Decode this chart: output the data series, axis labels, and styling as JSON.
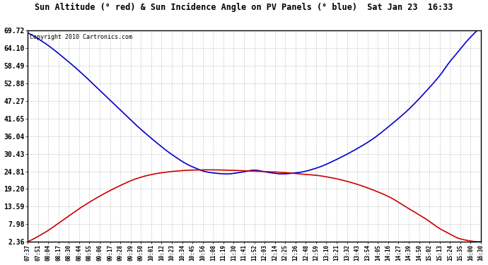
{
  "title": "Sun Altitude (° red) & Sun Incidence Angle on PV Panels (° blue)  Sat Jan 23  16:33",
  "copyright": "Copyright 2010 Cartronics.com",
  "yticks": [
    2.36,
    7.98,
    13.59,
    19.2,
    24.81,
    30.43,
    36.04,
    41.65,
    47.27,
    52.88,
    58.49,
    64.1,
    69.72
  ],
  "xtick_labels": [
    "07:37",
    "07:51",
    "08:04",
    "08:17",
    "08:30",
    "08:44",
    "08:55",
    "09:06",
    "09:17",
    "09:28",
    "09:39",
    "09:50",
    "10:01",
    "10:12",
    "10:23",
    "10:34",
    "10:45",
    "10:56",
    "11:08",
    "11:19",
    "11:30",
    "11:41",
    "11:52",
    "12:03",
    "12:14",
    "12:25",
    "12:36",
    "12:48",
    "12:59",
    "13:10",
    "13:21",
    "13:32",
    "13:43",
    "13:54",
    "14:05",
    "14:16",
    "14:27",
    "14:39",
    "14:50",
    "15:02",
    "15:13",
    "15:24",
    "15:35",
    "16:00",
    "16:30"
  ],
  "blue_color": "#0000cc",
  "red_color": "#cc0000",
  "bg_color": "#ffffff",
  "grid_color": "#bbbbbb",
  "ymin": 2.36,
  "ymax": 69.72,
  "blue_x": [
    0.0,
    0.04,
    0.08,
    0.12,
    0.16,
    0.2,
    0.24,
    0.28,
    0.32,
    0.36,
    0.4,
    0.44,
    0.47,
    0.5,
    0.53,
    0.56,
    0.6,
    0.64,
    0.68,
    0.72,
    0.76,
    0.8,
    0.84,
    0.88,
    0.91,
    0.93,
    0.95,
    0.97,
    0.99,
    1.0
  ],
  "blue_y": [
    69.0,
    65.5,
    61.0,
    56.0,
    50.5,
    45.0,
    39.5,
    34.5,
    30.0,
    26.5,
    24.5,
    24.0,
    24.5,
    25.2,
    24.5,
    24.0,
    24.5,
    26.0,
    28.5,
    31.5,
    35.0,
    39.5,
    44.5,
    50.5,
    55.5,
    59.5,
    63.0,
    66.5,
    69.5,
    71.0
  ],
  "red_x": [
    0.0,
    0.04,
    0.08,
    0.12,
    0.16,
    0.2,
    0.24,
    0.28,
    0.32,
    0.36,
    0.4,
    0.44,
    0.48,
    0.52,
    0.56,
    0.6,
    0.64,
    0.68,
    0.72,
    0.76,
    0.8,
    0.84,
    0.88,
    0.91,
    0.93,
    0.95,
    0.97,
    0.99,
    1.0
  ],
  "red_y": [
    2.36,
    5.5,
    9.5,
    13.5,
    17.0,
    20.0,
    22.5,
    24.0,
    24.8,
    25.2,
    25.3,
    25.2,
    25.0,
    24.8,
    24.5,
    24.0,
    23.5,
    22.5,
    21.0,
    19.0,
    16.5,
    13.0,
    9.5,
    6.5,
    5.0,
    3.5,
    2.8,
    2.4,
    2.36
  ]
}
